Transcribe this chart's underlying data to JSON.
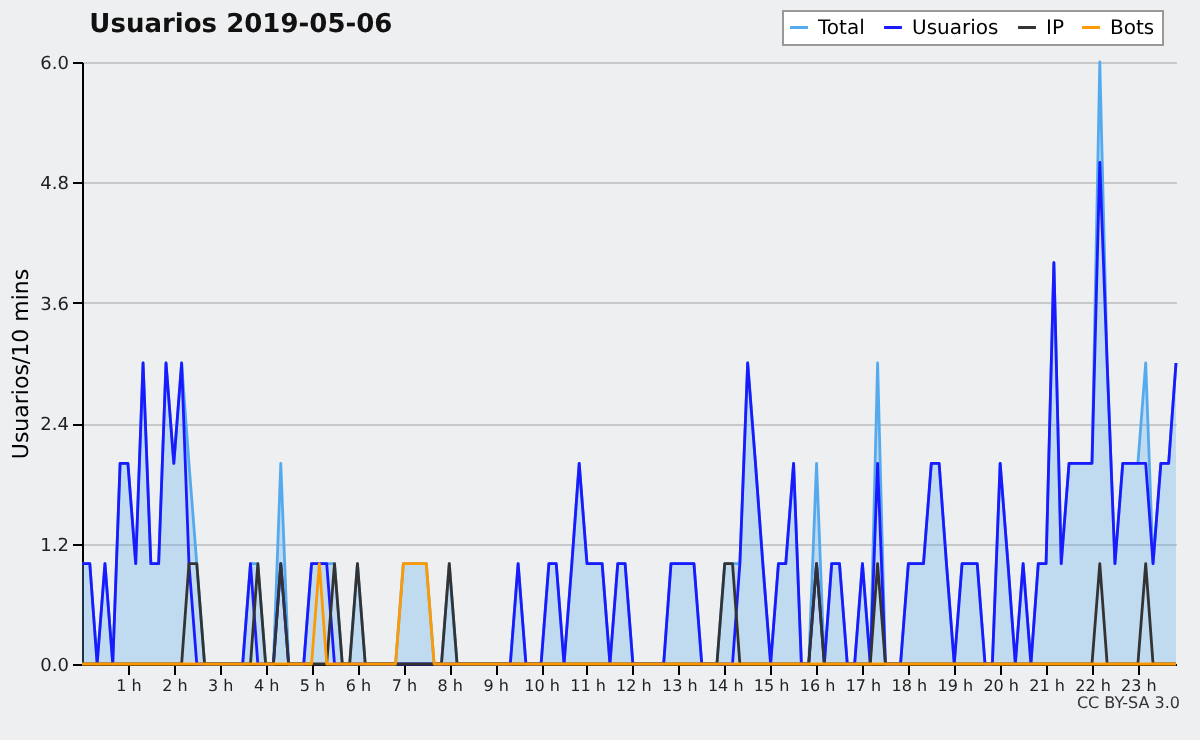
{
  "chart_data": {
    "type": "line",
    "title": "Usuarios  2019-05-06",
    "ylabel": "Usuarios/10 mins",
    "x": [
      0,
      0.17,
      0.33,
      0.5,
      0.67,
      0.83,
      1,
      1.17,
      1.33,
      1.5,
      1.67,
      1.83,
      2,
      2.17,
      2.33,
      2.5,
      2.67,
      2.83,
      3,
      3.17,
      3.33,
      3.5,
      3.67,
      3.83,
      4,
      4.17,
      4.33,
      4.5,
      4.67,
      4.83,
      5,
      5.17,
      5.33,
      5.5,
      5.67,
      5.83,
      6,
      6.17,
      6.33,
      6.5,
      6.67,
      6.83,
      7,
      7.17,
      7.33,
      7.5,
      7.67,
      7.83,
      8,
      8.17,
      8.33,
      8.5,
      8.67,
      8.83,
      9,
      9.17,
      9.33,
      9.5,
      9.67,
      9.83,
      10,
      10.17,
      10.33,
      10.5,
      10.67,
      10.83,
      11,
      11.17,
      11.33,
      11.5,
      11.67,
      11.83,
      12,
      12.17,
      12.33,
      12.5,
      12.67,
      12.83,
      13,
      13.17,
      13.33,
      13.5,
      13.67,
      13.83,
      14,
      14.17,
      14.33,
      14.5,
      14.67,
      14.83,
      15,
      15.17,
      15.33,
      15.5,
      15.67,
      15.83,
      16,
      16.17,
      16.33,
      16.5,
      16.67,
      16.83,
      17,
      17.17,
      17.33,
      17.5,
      17.67,
      17.83,
      18,
      18.17,
      18.33,
      18.5,
      18.67,
      18.83,
      19,
      19.17,
      19.33,
      19.5,
      19.67,
      19.83,
      20,
      20.17,
      20.33,
      20.5,
      20.67,
      20.83,
      21,
      21.17,
      21.33,
      21.5,
      21.67,
      21.83,
      22,
      22.17,
      22.33,
      22.5,
      22.67,
      22.83,
      23,
      23.17,
      23.33,
      23.5,
      23.67,
      23.83
    ],
    "series": [
      {
        "name": "Total",
        "type": "area",
        "color": "#55aaee",
        "values": [
          1,
          1,
          0,
          1,
          0,
          2,
          2,
          1,
          3,
          1,
          1,
          3,
          2,
          3,
          2,
          1,
          0,
          0,
          0,
          0,
          0,
          0,
          1,
          1,
          0,
          0,
          2,
          0,
          0,
          0,
          1,
          1,
          1,
          1,
          0,
          0,
          1,
          0,
          0,
          0,
          0,
          0,
          1,
          1,
          1,
          1,
          0,
          0,
          1,
          0,
          0,
          0,
          0,
          0,
          0,
          0,
          0,
          1,
          0,
          0,
          0,
          1,
          1,
          0,
          1,
          2,
          1,
          1,
          1,
          0,
          1,
          1,
          0,
          0,
          0,
          0,
          0,
          1,
          1,
          1,
          1,
          0,
          0,
          0,
          1,
          1,
          1,
          3,
          2,
          1,
          0,
          1,
          1,
          2,
          0,
          0,
          2,
          0,
          1,
          1,
          0,
          0,
          1,
          0,
          3,
          0,
          0,
          0,
          1,
          1,
          1,
          2,
          2,
          1,
          0,
          1,
          1,
          1,
          0,
          0,
          2,
          1,
          0,
          1,
          0,
          1,
          1,
          4,
          1,
          2,
          2,
          2,
          2,
          6,
          3,
          1,
          2,
          2,
          2,
          3,
          1,
          2,
          2,
          3
        ]
      },
      {
        "name": "Usuarios",
        "color": "#1a1aff",
        "values": [
          1,
          1,
          0,
          1,
          0,
          2,
          2,
          1,
          3,
          1,
          1,
          3,
          2,
          3,
          1,
          0,
          0,
          0,
          0,
          0,
          0,
          0,
          1,
          0,
          0,
          0,
          1,
          0,
          0,
          0,
          1,
          1,
          1,
          0,
          0,
          0,
          0,
          0,
          0,
          0,
          0,
          0,
          0,
          0,
          0,
          0,
          0,
          0,
          0,
          0,
          0,
          0,
          0,
          0,
          0,
          0,
          0,
          1,
          0,
          0,
          0,
          1,
          1,
          0,
          1,
          2,
          1,
          1,
          1,
          0,
          1,
          1,
          0,
          0,
          0,
          0,
          0,
          1,
          1,
          1,
          1,
          0,
          0,
          0,
          0,
          0,
          1,
          3,
          2,
          1,
          0,
          1,
          1,
          2,
          0,
          0,
          1,
          0,
          1,
          1,
          0,
          0,
          1,
          0,
          2,
          0,
          0,
          0,
          1,
          1,
          1,
          2,
          2,
          1,
          0,
          1,
          1,
          1,
          0,
          0,
          2,
          1,
          0,
          1,
          0,
          1,
          1,
          4,
          1,
          2,
          2,
          2,
          2,
          5,
          3,
          1,
          2,
          2,
          2,
          2,
          1,
          2,
          2,
          3
        ]
      },
      {
        "name": "IP",
        "color": "#333333",
        "values": [
          0,
          0,
          0,
          0,
          0,
          0,
          0,
          0,
          0,
          0,
          0,
          0,
          0,
          0,
          1,
          1,
          0,
          0,
          0,
          0,
          0,
          0,
          0,
          1,
          0,
          0,
          1,
          0,
          0,
          0,
          0,
          0,
          0,
          1,
          0,
          0,
          1,
          0,
          0,
          0,
          0,
          0,
          0,
          0,
          0,
          0,
          0,
          0,
          1,
          0,
          0,
          0,
          0,
          0,
          0,
          0,
          0,
          0,
          0,
          0,
          0,
          0,
          0,
          0,
          0,
          0,
          0,
          0,
          0,
          0,
          0,
          0,
          0,
          0,
          0,
          0,
          0,
          0,
          0,
          0,
          0,
          0,
          0,
          0,
          1,
          1,
          0,
          0,
          0,
          0,
          0,
          0,
          0,
          0,
          0,
          0,
          1,
          0,
          0,
          0,
          0,
          0,
          0,
          0,
          1,
          0,
          0,
          0,
          0,
          0,
          0,
          0,
          0,
          0,
          0,
          0,
          0,
          0,
          0,
          0,
          0,
          0,
          0,
          0,
          0,
          0,
          0,
          0,
          0,
          0,
          0,
          0,
          0,
          1,
          0,
          0,
          0,
          0,
          0,
          1,
          0,
          0,
          0,
          0
        ]
      },
      {
        "name": "Bots",
        "color": "#ff9900",
        "values": [
          0,
          0,
          0,
          0,
          0,
          0,
          0,
          0,
          0,
          0,
          0,
          0,
          0,
          0,
          0,
          0,
          0,
          0,
          0,
          0,
          0,
          0,
          0,
          0,
          0,
          0,
          0,
          0,
          0,
          0,
          0,
          1,
          0,
          0,
          0,
          0,
          0,
          0,
          0,
          0,
          0,
          0,
          1,
          1,
          1,
          1,
          0,
          0,
          0,
          0,
          0,
          0,
          0,
          0,
          0,
          0,
          0,
          0,
          0,
          0,
          0,
          0,
          0,
          0,
          0,
          0,
          0,
          0,
          0,
          0,
          0,
          0,
          0,
          0,
          0,
          0,
          0,
          0,
          0,
          0,
          0,
          0,
          0,
          0,
          0,
          0,
          0,
          0,
          0,
          0,
          0,
          0,
          0,
          0,
          0,
          0,
          0,
          0,
          0,
          0,
          0,
          0,
          0,
          0,
          0,
          0,
          0,
          0,
          0,
          0,
          0,
          0,
          0,
          0,
          0,
          0,
          0,
          0,
          0,
          0,
          0,
          0,
          0,
          0,
          0,
          0,
          0,
          0,
          0,
          0,
          0,
          0,
          0,
          0,
          0,
          0,
          0,
          0,
          0,
          0,
          0,
          0,
          0,
          0
        ]
      }
    ],
    "xlim": [
      0,
      23.83
    ],
    "xticks": [
      {
        "value": 1,
        "label": "1 h"
      },
      {
        "value": 2,
        "label": "2 h"
      },
      {
        "value": 3,
        "label": "3 h"
      },
      {
        "value": 4,
        "label": "4 h"
      },
      {
        "value": 5,
        "label": "5 h"
      },
      {
        "value": 6,
        "label": "6 h"
      },
      {
        "value": 7,
        "label": "7 h"
      },
      {
        "value": 8,
        "label": "8 h"
      },
      {
        "value": 9,
        "label": "9 h"
      },
      {
        "value": 10,
        "label": "10 h"
      },
      {
        "value": 11,
        "label": "11 h"
      },
      {
        "value": 12,
        "label": "12 h"
      },
      {
        "value": 13,
        "label": "13 h"
      },
      {
        "value": 14,
        "label": "14 h"
      },
      {
        "value": 15,
        "label": "15 h"
      },
      {
        "value": 16,
        "label": "16 h"
      },
      {
        "value": 17,
        "label": "17 h"
      },
      {
        "value": 18,
        "label": "18 h"
      },
      {
        "value": 19,
        "label": "19 h"
      },
      {
        "value": 20,
        "label": "20 h"
      },
      {
        "value": 21,
        "label": "21 h"
      },
      {
        "value": 22,
        "label": "22 h"
      },
      {
        "value": 23,
        "label": "23 h"
      }
    ],
    "ylim": [
      0,
      6
    ],
    "yticks": [
      {
        "value": 0,
        "label": "0.0"
      },
      {
        "value": 1.2,
        "label": "1.2"
      },
      {
        "value": 2.4,
        "label": "2.4"
      },
      {
        "value": 3.6,
        "label": "3.6"
      },
      {
        "value": 4.8,
        "label": "4.8"
      },
      {
        "value": 6,
        "label": "6.0"
      }
    ],
    "grid": "y",
    "legend": "top right",
    "marker": "none",
    "annotations": [
      "CC BY-SA 3.0"
    ]
  }
}
